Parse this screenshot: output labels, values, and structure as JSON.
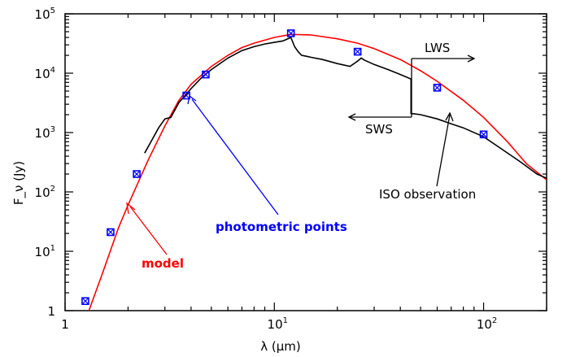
{
  "chart_data": {
    "type": "scatter",
    "xscale": "log",
    "yscale": "log",
    "xlim": [
      1,
      200
    ],
    "ylim": [
      1,
      100000
    ],
    "xlabel": "λ (μm)",
    "ylabel": "F_ν (Jy)",
    "x_ticks": [
      {
        "value": 1,
        "base": "1",
        "exp": ""
      },
      {
        "value": 10,
        "base": "10",
        "exp": "1"
      },
      {
        "value": 100,
        "base": "10",
        "exp": "2"
      }
    ],
    "y_ticks": [
      {
        "value": 1,
        "base": "1",
        "exp": ""
      },
      {
        "value": 10,
        "base": "10",
        "exp": "1"
      },
      {
        "value": 100,
        "base": "10",
        "exp": "2"
      },
      {
        "value": 1000,
        "base": "10",
        "exp": "3"
      },
      {
        "value": 10000,
        "base": "10",
        "exp": "4"
      },
      {
        "value": 100000,
        "base": "10",
        "exp": "5"
      }
    ],
    "series": [
      {
        "name": "model",
        "kind": "line",
        "color": "#ff0000",
        "points": [
          [
            1.3,
            1.0
          ],
          [
            1.5,
            4
          ],
          [
            1.8,
            25
          ],
          [
            2.0,
            60
          ],
          [
            2.5,
            350
          ],
          [
            3.0,
            1300
          ],
          [
            3.5,
            3500
          ],
          [
            4.0,
            6500
          ],
          [
            5.0,
            13000
          ],
          [
            6.0,
            20000
          ],
          [
            7.0,
            27000
          ],
          [
            8.0,
            32000
          ],
          [
            10.0,
            40000
          ],
          [
            12.0,
            45000
          ],
          [
            15.0,
            44000
          ],
          [
            20.0,
            38000
          ],
          [
            25.0,
            32000
          ],
          [
            30.0,
            26000
          ],
          [
            40.0,
            17000
          ],
          [
            50.0,
            11000
          ],
          [
            60.0,
            7300
          ],
          [
            80.0,
            3500
          ],
          [
            100.0,
            1800
          ],
          [
            130.0,
            700
          ],
          [
            160.0,
            300
          ],
          [
            200.0,
            160
          ]
        ]
      },
      {
        "name": "ISO observation",
        "kind": "line",
        "color": "#000000",
        "points": [
          [
            2.4,
            450
          ],
          [
            2.6,
            750
          ],
          [
            2.8,
            1200
          ],
          [
            3.0,
            1700
          ],
          [
            3.2,
            1800
          ],
          [
            3.5,
            3200
          ],
          [
            4.0,
            5500
          ],
          [
            4.5,
            8500
          ],
          [
            5.0,
            11500
          ],
          [
            6.0,
            18000
          ],
          [
            7.0,
            24000
          ],
          [
            8.0,
            28000
          ],
          [
            9.0,
            31000
          ],
          [
            10.0,
            33000
          ],
          [
            11.0,
            35000
          ],
          [
            12.0,
            40000
          ],
          [
            12.5,
            28000
          ],
          [
            13.0,
            23000
          ],
          [
            13.5,
            20000
          ],
          [
            14.0,
            19500
          ],
          [
            15.0,
            18500
          ],
          [
            17.0,
            17000
          ],
          [
            20.0,
            14500
          ],
          [
            23.0,
            13000
          ],
          [
            25.0,
            16000
          ],
          [
            26.0,
            18000
          ],
          [
            27.0,
            16500
          ],
          [
            30.0,
            14000
          ],
          [
            35.0,
            11500
          ],
          [
            40.0,
            9500
          ],
          [
            45.0,
            8000
          ],
          [
            45.0,
            2100
          ],
          [
            50.0,
            2000
          ],
          [
            60.0,
            1700
          ],
          [
            70.0,
            1400
          ],
          [
            80.0,
            1200
          ],
          [
            100.0,
            850
          ],
          [
            120.0,
            550
          ],
          [
            150.0,
            320
          ],
          [
            180.0,
            200
          ],
          [
            200.0,
            170
          ]
        ]
      },
      {
        "name": "photometric points",
        "kind": "scatter",
        "color": "#0000ff",
        "points": [
          [
            1.25,
            1.45
          ],
          [
            1.65,
            21
          ],
          [
            2.2,
            200
          ],
          [
            3.8,
            4200
          ],
          [
            4.7,
            9500
          ],
          [
            12.0,
            47000
          ],
          [
            25.0,
            23000
          ],
          [
            60.0,
            5700
          ],
          [
            100.0,
            930
          ]
        ]
      }
    ],
    "annotations": [
      {
        "text": "model",
        "color": "#ff0000"
      },
      {
        "text": "photometric points",
        "color": "#0000ff"
      },
      {
        "text": "ISO observation",
        "color": "#000000"
      },
      {
        "text": "LWS",
        "color": "#000000"
      },
      {
        "text": "SWS",
        "color": "#000000"
      }
    ],
    "grid": false,
    "legend": "none"
  }
}
